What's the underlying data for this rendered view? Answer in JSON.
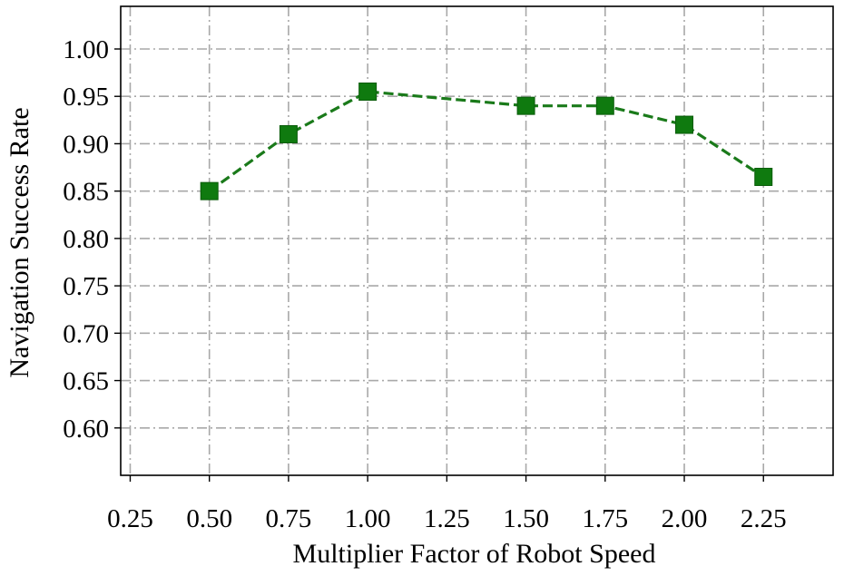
{
  "chart_data": {
    "type": "line",
    "title": "",
    "xlabel": "Multiplier  Factor of Robot Speed",
    "ylabel": "Navigation Success Rate",
    "xlim": [
      0.22,
      2.47
    ],
    "ylim": [
      0.55,
      1.045
    ],
    "x_ticks": [
      "0.25",
      "0.50",
      "0.75",
      "1.00",
      "1.25",
      "1.50",
      "1.75",
      "2.00",
      "2.25"
    ],
    "y_ticks": [
      "0.60",
      "0.65",
      "0.70",
      "0.75",
      "0.80",
      "0.85",
      "0.90",
      "0.95",
      "1.00"
    ],
    "grid": true,
    "series": [
      {
        "color": "#1a7a1a",
        "line_style": "dashed",
        "marker": "square",
        "x": [
          0.5,
          0.75,
          1.0,
          1.5,
          1.75,
          2.0,
          2.25
        ],
        "y": [
          0.85,
          0.91,
          0.955,
          0.94,
          0.94,
          0.92,
          0.865
        ]
      }
    ]
  }
}
